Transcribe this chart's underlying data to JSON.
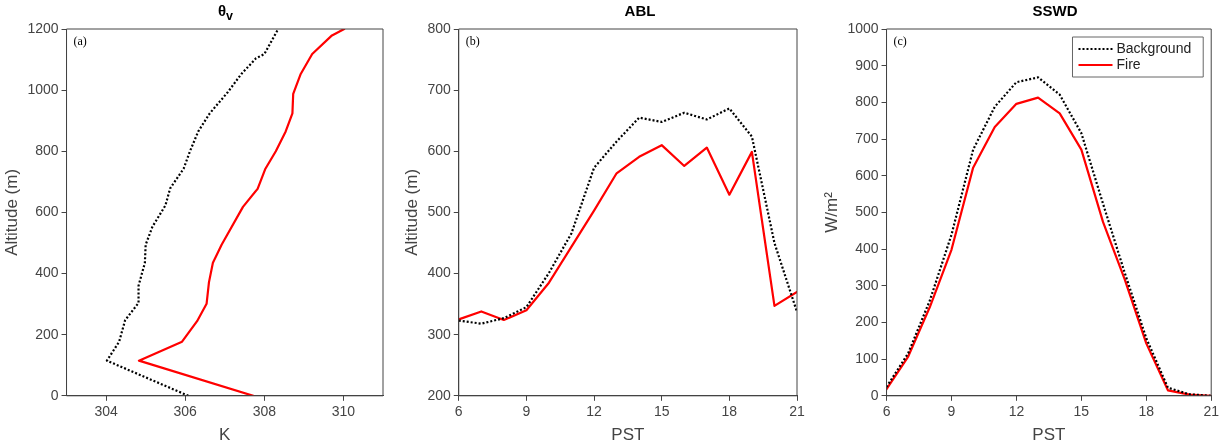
{
  "chart_data": [
    {
      "type": "line",
      "title": "θ$_{v}$",
      "xlabel": "K",
      "ylabel": "Altitude (m)",
      "annotations": [
        "(a)"
      ],
      "marker": "none",
      "xlim": [
        303,
        311
      ],
      "xticks": [
        304,
        306,
        308,
        310
      ],
      "ylim": [
        0,
        1200
      ],
      "yticks": [
        0,
        200,
        400,
        600,
        800,
        1000,
        1200
      ],
      "series": [
        {
          "color": "#000000",
          "line_style": "dotted",
          "x": [
            306.08,
            304.02,
            304.33,
            304.48,
            304.82,
            304.82,
            304.98,
            305.0,
            305.17,
            305.5,
            305.62,
            305.96,
            306.12,
            306.33,
            306.62,
            307.08,
            307.42,
            307.79,
            308.0,
            308.35
          ],
          "values": [
            0,
            115,
            177,
            247,
            304,
            360,
            435,
            494,
            553,
            623,
            679,
            743,
            800,
            865,
            924,
            994,
            1053,
            1104,
            1118,
            1200
          ]
        },
        {
          "color": "#ff0000",
          "line_style": "solid",
          "x": [
            307.72,
            304.83,
            305.92,
            306.3,
            306.54,
            306.6,
            306.7,
            306.92,
            307.46,
            307.83,
            308.02,
            308.29,
            308.54,
            308.71,
            308.73,
            308.92,
            309.21,
            309.71,
            310.02
          ],
          "values": [
            0,
            115,
            177,
            244,
            301,
            371,
            435,
            494,
            618,
            677,
            741,
            800,
            865,
            924,
            988,
            1053,
            1118,
            1179,
            1200
          ]
        }
      ]
    },
    {
      "type": "line",
      "title": "ABL",
      "xlabel": "PST",
      "ylabel": "Altitude (m)",
      "annotations": [
        "(b)"
      ],
      "marker": "none",
      "x": [
        6,
        7,
        8,
        9,
        10,
        11,
        12,
        13,
        14,
        15,
        16,
        17,
        18,
        19,
        20,
        21
      ],
      "xlim": [
        6,
        21
      ],
      "xticks": [
        6,
        9,
        12,
        15,
        18,
        21
      ],
      "ylim": [
        200,
        800
      ],
      "yticks": [
        200,
        300,
        400,
        500,
        600,
        700,
        800
      ],
      "series": [
        {
          "color": "#000000",
          "line_style": "dotted",
          "values": [
            323,
            318,
            327,
            345,
            401,
            466,
            573,
            616,
            655,
            648,
            663,
            652,
            670,
            624,
            450,
            337
          ]
        },
        {
          "color": "#ff0000",
          "line_style": "solid",
          "values": [
            325,
            338,
            324,
            340,
            385,
            444,
            503,
            564,
            591,
            610,
            576,
            606,
            529,
            599,
            347,
            370
          ]
        }
      ]
    },
    {
      "type": "line",
      "title": "SSWD",
      "xlabel": "PST",
      "ylabel": "W/m²",
      "annotations": [
        "(c)"
      ],
      "marker": "none",
      "legend": "top right",
      "x": [
        6,
        7,
        8,
        9,
        10,
        11,
        12,
        13,
        14,
        15,
        16,
        17,
        18,
        19,
        20,
        21
      ],
      "xlim": [
        6,
        21
      ],
      "xticks": [
        6,
        9,
        12,
        15,
        18,
        21
      ],
      "ylim": [
        0,
        1000
      ],
      "yticks": [
        0,
        100,
        200,
        300,
        400,
        500,
        600,
        700,
        800,
        900,
        1000
      ],
      "series": [
        {
          "name": "Background",
          "color": "#000000",
          "line_style": "dotted",
          "values": [
            24,
            116,
            260,
            439,
            671,
            788,
            855,
            868,
            821,
            716,
            524,
            336,
            157,
            22,
            4,
            0
          ]
        },
        {
          "name": "Fire",
          "color": "#ff0000",
          "line_style": "solid",
          "values": [
            18,
            107,
            242,
            398,
            622,
            733,
            796,
            813,
            770,
            671,
            474,
            318,
            143,
            15,
            3,
            0
          ]
        }
      ]
    }
  ]
}
